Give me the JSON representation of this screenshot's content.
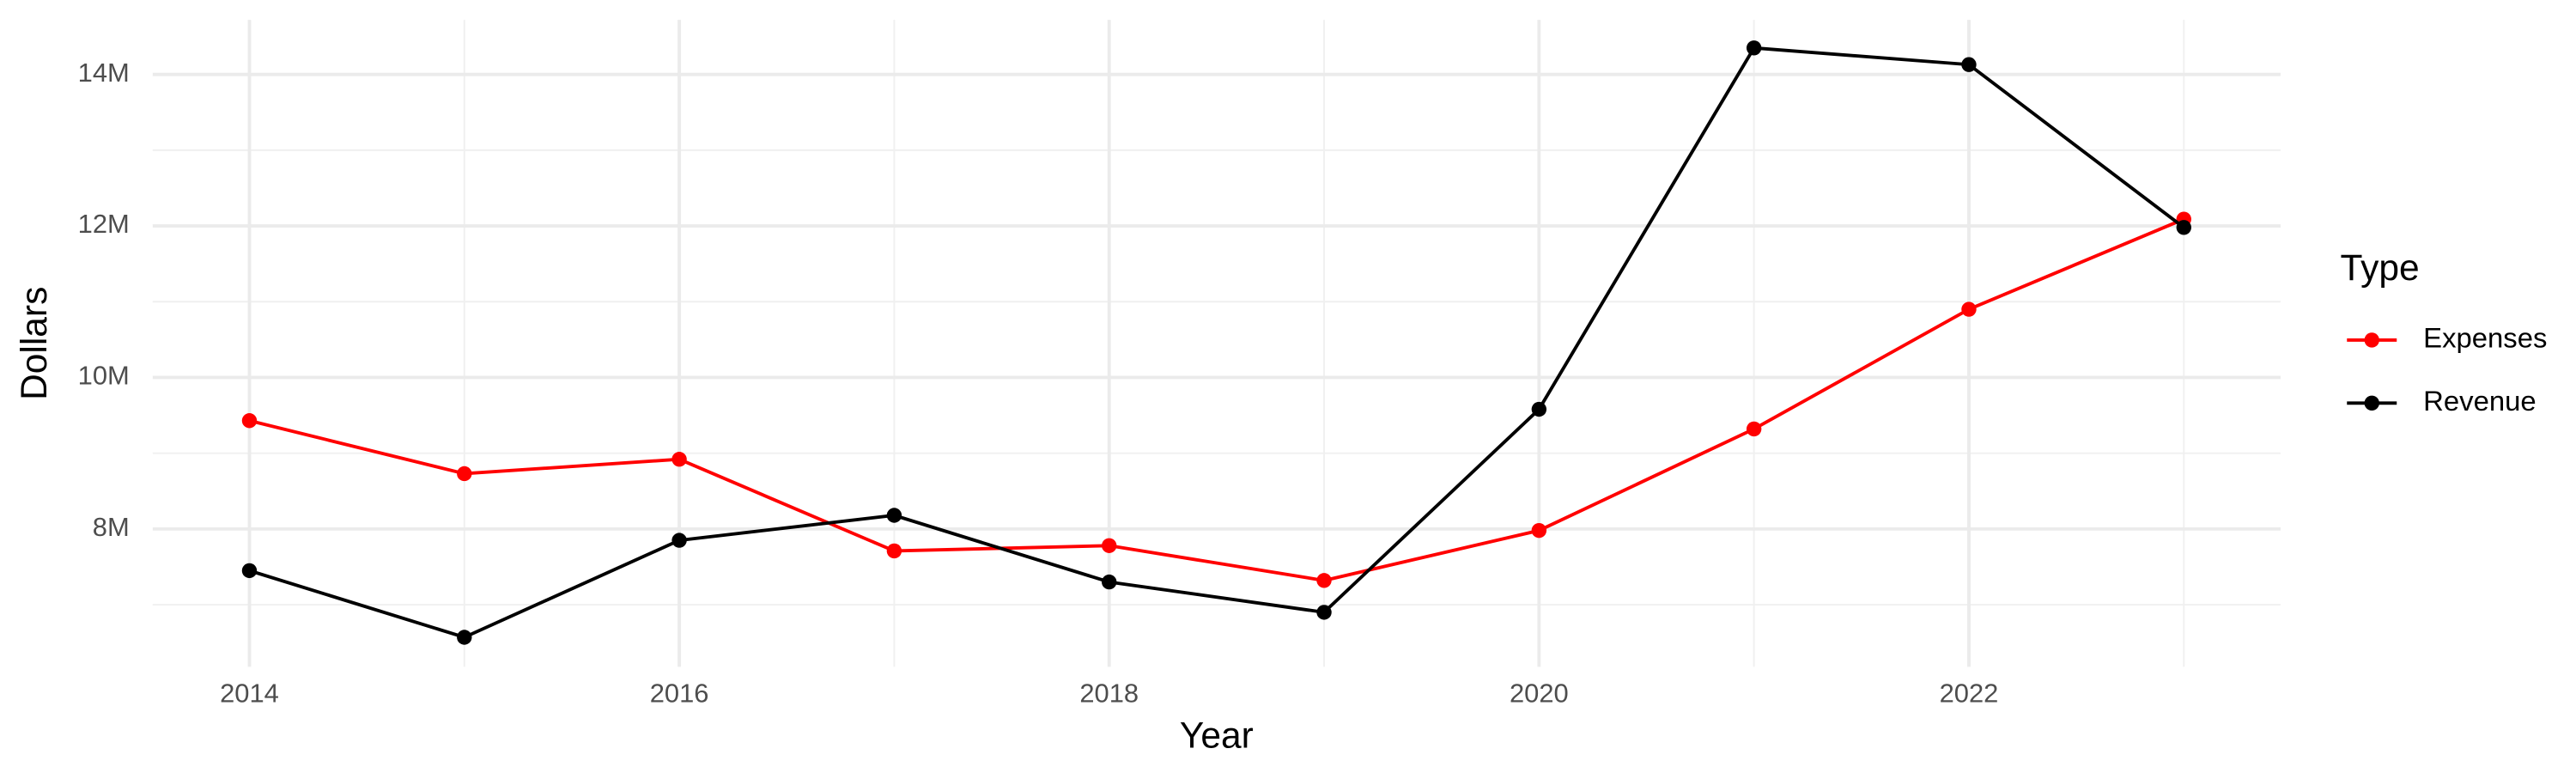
{
  "chart_data": {
    "type": "line",
    "x_label": "Year",
    "y_label": "Dollars",
    "legend_title": "Type",
    "x": [
      2014,
      2015,
      2016,
      2017,
      2018,
      2019,
      2020,
      2021,
      2022,
      2023
    ],
    "series": [
      {
        "name": "Expenses",
        "color": "#ff0000",
        "values": [
          9430000,
          8730000,
          8920000,
          7710000,
          7780000,
          7320000,
          7980000,
          9320000,
          10900000,
          12090000
        ]
      },
      {
        "name": "Revenue",
        "color": "#000000",
        "values": [
          7450000,
          6570000,
          7850000,
          8180000,
          7300000,
          6900000,
          9580000,
          14350000,
          14130000,
          11980000
        ]
      }
    ],
    "xlim": [
      2013.55,
      2023.45
    ],
    "xticks": [
      2014,
      2016,
      2018,
      2020,
      2022
    ],
    "ylim": [
      6180000,
      14720000
    ],
    "yticks": [
      {
        "value": 8000000,
        "label": "8M"
      },
      {
        "value": 10000000,
        "label": "10M"
      },
      {
        "value": 12000000,
        "label": "12M"
      },
      {
        "value": 14000000,
        "label": "14M"
      }
    ],
    "grid": true,
    "legend": "right"
  }
}
